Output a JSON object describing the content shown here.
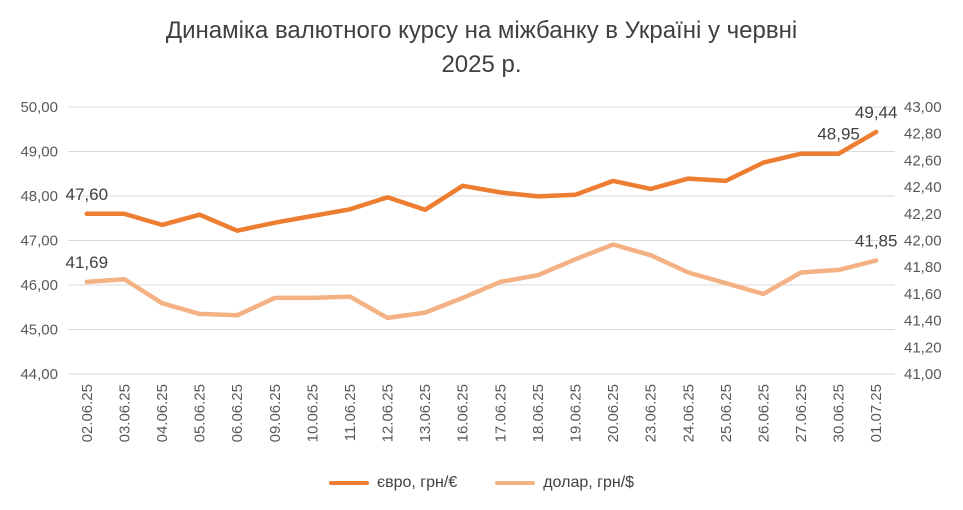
{
  "chart_data": {
    "type": "line",
    "title_line1": "Динаміка валютного курсу на міжбанку в Україні у червні",
    "title_line2": "2025 р.",
    "categories": [
      "02.06.25",
      "03.06.25",
      "04.06.25",
      "05.06.25",
      "06.06.25",
      "09.06.25",
      "10.06.25",
      "11.06.25",
      "12.06.25",
      "13.06.25",
      "16.06.25",
      "17.06.25",
      "18.06.25",
      "19.06.25",
      "20.06.25",
      "23.06.25",
      "24.06.25",
      "25.06.25",
      "26.06.25",
      "27.06.25",
      "30.06.25",
      "01.07.25"
    ],
    "y_left": {
      "min": 44,
      "max": 50,
      "step": 1,
      "ticks": [
        "44,00",
        "45,00",
        "46,00",
        "47,00",
        "48,00",
        "49,00",
        "50,00"
      ]
    },
    "y_right": {
      "min": 41,
      "max": 43,
      "step": 0.2,
      "ticks": [
        "41,00",
        "41,20",
        "41,40",
        "41,60",
        "41,80",
        "42,00",
        "42,20",
        "42,40",
        "42,60",
        "42,80",
        "43,00"
      ]
    },
    "grid": true,
    "legend_position": "bottom",
    "series": [
      {
        "name": "євро, грн/€",
        "axis": "left",
        "color": "#ED7D31",
        "values": [
          47.6,
          47.6,
          47.35,
          47.58,
          47.22,
          47.4,
          47.55,
          47.7,
          47.97,
          47.69,
          48.23,
          48.08,
          47.99,
          48.03,
          48.34,
          48.16,
          48.39,
          48.34,
          48.75,
          48.95,
          48.95,
          49.44
        ],
        "labels": [
          {
            "index": 0,
            "text": "47,60"
          },
          {
            "index": 20,
            "text": "48,95"
          },
          {
            "index": 21,
            "text": "49,44"
          }
        ]
      },
      {
        "name": "долар, грн/$",
        "axis": "right",
        "color": "#F4B183",
        "values": [
          41.69,
          41.71,
          41.53,
          41.45,
          41.44,
          41.57,
          41.57,
          41.58,
          41.42,
          41.46,
          41.57,
          41.69,
          41.74,
          41.86,
          41.97,
          41.89,
          41.76,
          41.68,
          41.6,
          41.76,
          41.78,
          41.85
        ],
        "labels": [
          {
            "index": 0,
            "text": "41,69"
          },
          {
            "index": 21,
            "text": "41,85"
          }
        ]
      }
    ]
  }
}
